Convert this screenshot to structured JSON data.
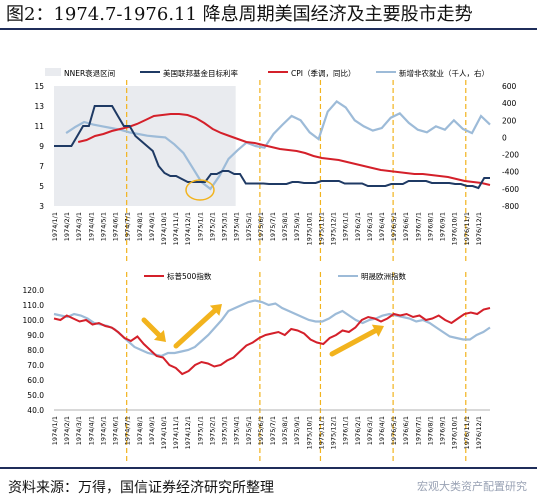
{
  "title": "图2：1974.7-1976.11 降息周期美国经济及主要股市走势",
  "source": "资料来源：万得，国信证券经济研究所整理",
  "watermark": "宏观大类资产配置研究",
  "chart_data": [
    {
      "type": "line",
      "legend": [
        "NNER衰退区间",
        "美国联邦基金目标利率",
        "CPI（季调，同比）",
        "新增非农就业（千人，右）"
      ],
      "colors": {
        "recession": "#e9ebef",
        "fedfunds": "#1f3a64",
        "cpi": "#d4202a",
        "payrolls": "#9dbbd8",
        "marker": "#f2b31d"
      },
      "x_ticks": [
        "1974/1/1",
        "1974/2/1",
        "1974/3/1",
        "1974/4/1",
        "1974/5/1",
        "1974/6/1",
        "1974/7/1",
        "1974/8/1",
        "1974/9/1",
        "1974/10/1",
        "1974/11/1",
        "1974/12/1",
        "1975/1/1",
        "1975/2/1",
        "1975/3/1",
        "1975/4/1",
        "1975/5/1",
        "1975/6/1",
        "1975/7/1",
        "1975/8/1",
        "1975/9/1",
        "1975/10/1",
        "1975/11/1",
        "1975/12/1",
        "1976/1/1",
        "1976/2/1",
        "1976/3/1",
        "1976/4/1",
        "1976/5/1",
        "1976/6/1",
        "1976/7/1",
        "1976/8/1",
        "1976/9/1",
        "1976/10/1",
        "1976/11/1",
        "1976/12/1"
      ],
      "y_left": {
        "ticks": [
          3,
          5,
          7,
          9,
          11,
          13,
          15
        ],
        "range": [
          3,
          15
        ]
      },
      "y_right": {
        "ticks": [
          -800,
          -600,
          -400,
          -200,
          0,
          200,
          400,
          600
        ],
        "range": [
          -800,
          600
        ]
      },
      "recession": [
        "1973/12",
        "1975/3"
      ],
      "vlines": [
        "1974/7",
        "1975/6",
        "1975/11",
        "1976/5",
        "1976/11"
      ],
      "fed_funds": [
        9,
        9,
        9,
        9,
        10,
        11,
        11,
        13,
        13,
        13,
        13,
        12,
        11,
        11,
        10,
        9.5,
        9,
        8.5,
        7,
        6.3,
        6,
        6,
        5.7,
        5.4,
        5.4,
        5.4,
        5.4,
        6.2,
        6.2,
        6.5,
        6.5,
        6.2,
        6.2,
        5.25,
        5.25,
        5.25,
        5.25,
        5.2,
        5.2,
        5.2,
        5.2,
        5.4,
        5.4,
        5.3,
        5.3,
        5.3,
        5.5,
        5.5,
        5.5,
        5.5,
        5.25,
        5.25,
        5.25,
        5.25,
        5.0,
        5.0,
        5.0,
        5.0,
        5.2,
        5.2,
        5.2,
        5.5,
        5.5,
        5.5,
        5.5,
        5.3,
        5.3,
        5.3,
        5.3,
        5.2,
        5.2,
        5.0,
        5.0,
        4.8,
        5.8,
        5.8
      ],
      "cpi": [
        9.4,
        9.6,
        10.0,
        10.2,
        10.5,
        10.7,
        10.9,
        11.2,
        11.6,
        12.0,
        12.1,
        12.2,
        12.2,
        12.1,
        11.8,
        11.3,
        10.7,
        10.3,
        10.0,
        9.7,
        9.4,
        9.3,
        9.1,
        8.9,
        8.7,
        8.6,
        8.5,
        8.3,
        8.0,
        7.8,
        7.7,
        7.6,
        7.4,
        7.2,
        7.0,
        6.8,
        6.6,
        6.5,
        6.4,
        6.3,
        6.2,
        6.2,
        6.1,
        6.0,
        5.9,
        5.7,
        5.5,
        5.4,
        5.3,
        5.1
      ],
      "payrolls": [
        50,
        120,
        180,
        150,
        130,
        110,
        90,
        60,
        40,
        20,
        10,
        0,
        -80,
        -180,
        -350,
        -520,
        -600,
        -450,
        -250,
        -150,
        -60,
        -100,
        -120,
        40,
        150,
        250,
        200,
        60,
        -20,
        300,
        420,
        350,
        200,
        130,
        80,
        110,
        230,
        280,
        170,
        90,
        60,
        130,
        90,
        200,
        100,
        50,
        250,
        150
      ]
    },
    {
      "type": "line",
      "legend": [
        "标普500指数",
        "明晟欧洲指数"
      ],
      "colors": {
        "sp500": "#d4202a",
        "msci_europe": "#9dbbd8",
        "arrow": "#f2b31d"
      },
      "x_ticks": [
        "1974/1/1",
        "1974/2/1",
        "1974/3/1",
        "1974/4/1",
        "1974/5/1",
        "1974/6/1",
        "1974/7/1",
        "1974/8/1",
        "1974/9/1",
        "1974/10/1",
        "1974/11/1",
        "1974/12/1",
        "1975/1/1",
        "1975/2/1",
        "1975/3/1",
        "1975/4/1",
        "1975/5/1",
        "1975/6/1",
        "1975/7/1",
        "1975/8/1",
        "1975/9/1",
        "1975/10/1",
        "1975/11/1",
        "1975/12/1",
        "1976/1/1",
        "1976/2/1",
        "1976/3/1",
        "1976/4/1",
        "1976/5/1",
        "1976/6/1",
        "1976/7/1",
        "1976/8/1",
        "1976/9/1",
        "1976/10/1",
        "1976/11/1",
        "1976/12/1"
      ],
      "y": {
        "ticks": [
          40,
          50,
          60,
          70,
          80,
          90,
          100,
          110,
          120
        ],
        "labels": [
          "40.0",
          "50.0",
          "60.0",
          "70.0",
          "80.0",
          "90.0",
          "100.0",
          "110.0",
          "120.0"
        ],
        "range": [
          40,
          120
        ]
      },
      "vlines": [
        "1974/7",
        "1975/6",
        "1975/11",
        "1976/5",
        "1976/11"
      ],
      "sp500": [
        101,
        100,
        103,
        101,
        99,
        100,
        97,
        98,
        96,
        95,
        92,
        88,
        86,
        89,
        84,
        80,
        76,
        75,
        70,
        68,
        64,
        66,
        70,
        72,
        71,
        69,
        70,
        73,
        75,
        79,
        83,
        85,
        88,
        90,
        91,
        92,
        90,
        94,
        93,
        91,
        87,
        85,
        84,
        88,
        90,
        93,
        92,
        95,
        100,
        102,
        101,
        99,
        101,
        104,
        103,
        104,
        102,
        103,
        100,
        101,
        103,
        100,
        98,
        101,
        104,
        105,
        104,
        107,
        108
      ],
      "msci_europe": [
        104,
        103,
        102,
        104,
        103,
        101,
        98,
        97,
        96,
        94,
        90,
        86,
        82,
        80,
        78,
        77,
        76,
        78,
        78,
        79,
        80,
        82,
        86,
        90,
        95,
        100,
        106,
        108,
        110,
        112,
        113,
        112,
        110,
        111,
        108,
        106,
        104,
        102,
        100,
        99,
        99,
        101,
        104,
        106,
        103,
        100,
        98,
        100,
        101,
        103,
        104,
        103,
        102,
        101,
        99,
        100,
        98,
        95,
        92,
        89,
        88,
        87,
        87,
        90,
        92,
        95
      ]
    }
  ]
}
